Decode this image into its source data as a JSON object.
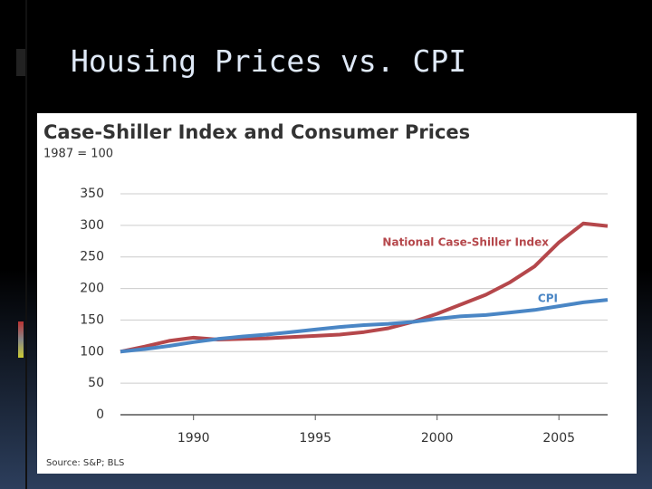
{
  "slide_title": "Housing Prices vs. CPI",
  "chart_data": {
    "type": "line",
    "title": "Case-Shiller Index and Consumer Prices",
    "subtitle": "1987 = 100",
    "source": "Source: S&P; BLS",
    "x": [
      1987,
      1988,
      1989,
      1990,
      1991,
      1992,
      1993,
      1994,
      1995,
      1996,
      1997,
      1998,
      1999,
      2000,
      2001,
      2002,
      2003,
      2004,
      2005,
      2006,
      2007
    ],
    "series": [
      {
        "name": "National Case-Shiller Index",
        "color": "#b5474b",
        "values": [
          100,
          108,
          117,
          122,
          119,
          120,
          121,
          123,
          125,
          127,
          131,
          137,
          147,
          160,
          175,
          190,
          210,
          235,
          273,
          303,
          299
        ]
      },
      {
        "name": "CPI",
        "color": "#4a86c5",
        "values": [
          100,
          104,
          109,
          115,
          120,
          124,
          127,
          131,
          135,
          139,
          142,
          144,
          147,
          152,
          156,
          158,
          162,
          166,
          172,
          178,
          182
        ]
      }
    ],
    "xlim": [
      1987,
      2007
    ],
    "xticks": [
      1990,
      1995,
      2000,
      2005
    ],
    "ylim": [
      0,
      350
    ],
    "yticks": [
      0,
      50,
      100,
      150,
      200,
      250,
      300,
      350
    ],
    "grid": true
  }
}
